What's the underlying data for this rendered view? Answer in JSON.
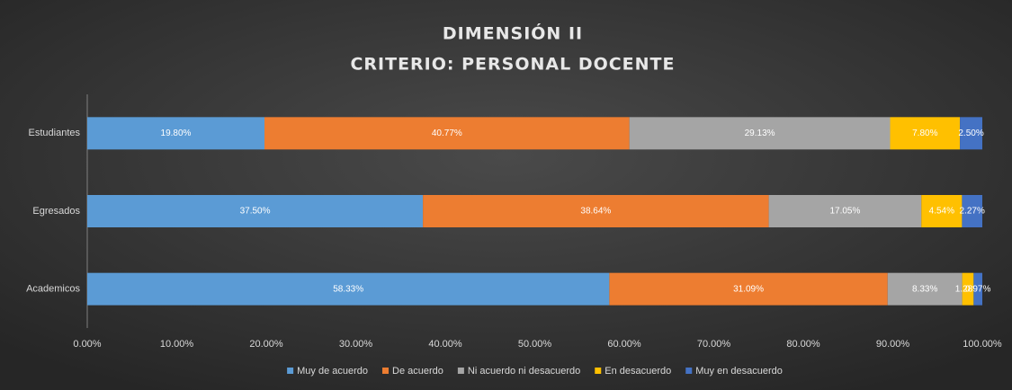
{
  "chart_data": {
    "type": "stacked_bar_horizontal",
    "title": "DIMENSIÓN  II",
    "subtitle": "CRITERIO:  PERSONAL  DOCENTE",
    "categories": [
      "Estudiantes",
      "Egresados",
      "Academicos"
    ],
    "series": [
      {
        "name": "Muy de acuerdo",
        "color": "#5b9bd5",
        "values": [
          19.8,
          37.5,
          58.33
        ],
        "value_labels": [
          "19.80%",
          "37.50%",
          "58.33%"
        ]
      },
      {
        "name": "De acuerdo",
        "color": "#ed7d31",
        "values": [
          40.77,
          38.64,
          31.09
        ],
        "value_labels": [
          "40.77%",
          "38.64%",
          "31.09%"
        ]
      },
      {
        "name": "Ni acuerdo ni desacuerdo",
        "color": "#a5a5a5",
        "values": [
          29.13,
          17.05,
          8.33
        ],
        "value_labels": [
          "29.13%",
          "17.05%",
          "8.33%"
        ]
      },
      {
        "name": "En desacuerdo",
        "color": "#ffc000",
        "values": [
          7.8,
          4.54,
          1.28
        ],
        "value_labels": [
          "7.80%",
          "4.54%",
          "1.28%"
        ]
      },
      {
        "name": "Muy en desacuerdo",
        "color": "#4472c4",
        "values": [
          2.5,
          2.27,
          0.97
        ],
        "value_labels": [
          "2.50%",
          "2.27%",
          "0.97%"
        ]
      }
    ],
    "xlim": [
      0,
      100
    ],
    "xticks": [
      {
        "value": 0,
        "label": "0.00%"
      },
      {
        "value": 10,
        "label": "10.00%"
      },
      {
        "value": 20,
        "label": "20.00%"
      },
      {
        "value": 30,
        "label": "30.00%"
      },
      {
        "value": 40,
        "label": "40.00%"
      },
      {
        "value": 50,
        "label": "50.00%"
      },
      {
        "value": 60,
        "label": "60.00%"
      },
      {
        "value": 70,
        "label": "70.00%"
      },
      {
        "value": 80,
        "label": "80.00%"
      },
      {
        "value": 90,
        "label": "90.00%"
      },
      {
        "value": 100,
        "label": "100.00%"
      }
    ],
    "grid": false,
    "legend": "bottom"
  }
}
